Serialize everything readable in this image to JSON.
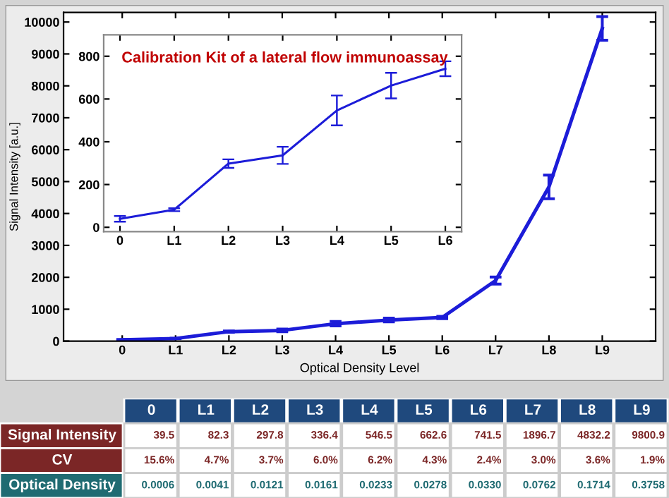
{
  "chart_data": [
    {
      "type": "line",
      "xlabel": "Optical Density Level",
      "ylabel": "Signal Intensity [a.u.]",
      "categories": [
        "0",
        "L1",
        "L2",
        "L3",
        "L4",
        "L5",
        "L6",
        "L7",
        "L8",
        "L9"
      ],
      "series": [
        {
          "color": "#1c1cd8",
          "values": [
            39.5,
            82.3,
            297.8,
            336.4,
            546.5,
            662.6,
            741.5,
            1896.7,
            4832.2,
            9800.9
          ],
          "errors": [
            13,
            7,
            20,
            40,
            70,
            60,
            35,
            110,
            370,
            370
          ]
        }
      ],
      "ylim": [
        0,
        10300
      ],
      "yticks": [
        0,
        1000,
        2000,
        3000,
        4000,
        5000,
        6000,
        7000,
        8000,
        9000,
        10000
      ],
      "grid": false,
      "legend": false,
      "marker": "none",
      "line_style": "solid"
    },
    {
      "type": "line",
      "title": "Calibration Kit of a lateral flow immunoassay",
      "categories": [
        "0",
        "L1",
        "L2",
        "L3",
        "L4",
        "L5",
        "L6"
      ],
      "series": [
        {
          "color": "#1c1cd8",
          "values": [
            39.5,
            82.3,
            297.8,
            336.4,
            546.5,
            662.6,
            741.5
          ],
          "errors": [
            13,
            7,
            20,
            40,
            70,
            60,
            35
          ]
        }
      ],
      "ylim": [
        -20,
        900
      ],
      "yticks": [
        0,
        200,
        400,
        600,
        800
      ],
      "grid": false,
      "legend": false,
      "marker": "none",
      "line_style": "solid"
    },
    {
      "type": "other",
      "categories": [
        "0",
        "L1",
        "L2",
        "L3",
        "L4",
        "L5",
        "L6",
        "L7",
        "L8",
        "L9"
      ],
      "y_categories": [
        "Signal Intensity",
        "CV",
        "Optical Density"
      ],
      "cell_labels": [
        [
          "39.5",
          "82.3",
          "297.8",
          "336.4",
          "546.5",
          "662.6",
          "741.5",
          "1896.7",
          "4832.2",
          "9800.9"
        ],
        [
          "15.6%",
          "4.7%",
          "3.7%",
          "6.0%",
          "6.2%",
          "4.3%",
          "2.4%",
          "3.0%",
          "3.6%",
          "1.9%"
        ],
        [
          "0.0006",
          "0.0041",
          "0.0121",
          "0.0161",
          "0.0233",
          "0.0278",
          "0.0330",
          "0.0762",
          "0.1714",
          "0.3758"
        ]
      ]
    }
  ]
}
